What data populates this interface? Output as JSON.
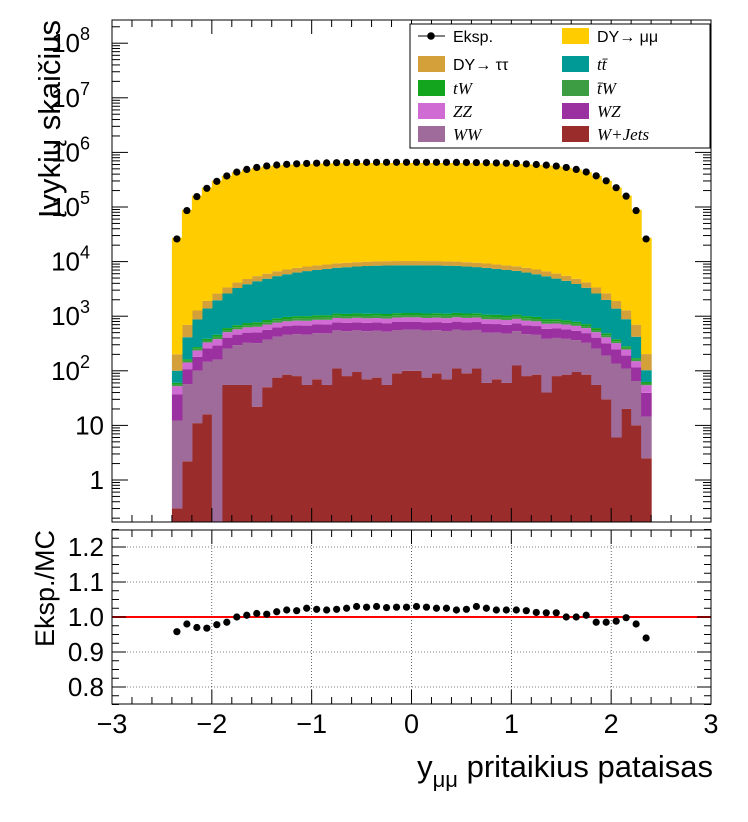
{
  "chart_data": [
    {
      "panel": "main",
      "type": "stacked-histogram-with-points",
      "ylabel": "Įvykių skaičius",
      "yscale": "log",
      "ylim": [
        0.2,
        150000000
      ],
      "xlim": [
        -3,
        3
      ],
      "bin_edges_range": [
        -2.4,
        2.4
      ],
      "n_bins": 48,
      "ytick_labels": [
        "1",
        "10",
        "10^2",
        "10^3",
        "10^4",
        "10^5",
        "10^6",
        "10^7",
        "10^8"
      ],
      "xtick_labels": [
        "−3",
        "−2",
        "−1",
        "0",
        "1",
        "2",
        "3"
      ],
      "legend": [
        {
          "label": "Eksp.",
          "kind": "points",
          "italic": false
        },
        {
          "label": "DY→ μμ",
          "kind": "fill",
          "color": "#ffcc00",
          "italic": false
        },
        {
          "label": "DY→ ττ",
          "kind": "fill",
          "color": "#d4a03a",
          "italic": false
        },
        {
          "label": "tt̄",
          "kind": "fill",
          "color": "#009a96",
          "italic": true
        },
        {
          "label": "tW",
          "kind": "fill",
          "color": "#13a51d",
          "italic": true
        },
        {
          "label": "t̄W",
          "kind": "fill",
          "color": "#3c9d42",
          "italic": true
        },
        {
          "label": "ZZ",
          "kind": "fill",
          "color": "#d16bd4",
          "italic": true
        },
        {
          "label": "WZ",
          "kind": "fill",
          "color": "#9b31a0",
          "italic": true
        },
        {
          "label": "WW",
          "kind": "fill",
          "color": "#9e6b9a",
          "italic": true
        },
        {
          "label": "W+Jets",
          "kind": "fill",
          "color": "#9a2c2c",
          "italic": true
        }
      ],
      "legend_position": "top-right",
      "series": [
        {
          "name": "W+Jets",
          "color": "#9a2c2c",
          "values": [
            0.3,
            2.2,
            11,
            16,
            0.1,
            55,
            55,
            55,
            22,
            50,
            75,
            85,
            80,
            55,
            70,
            55,
            110,
            80,
            95,
            70,
            75,
            55,
            90,
            100,
            100,
            75,
            90,
            70,
            110,
            90,
            110,
            60,
            70,
            60,
            125,
            80,
            85,
            40,
            80,
            85,
            95,
            85,
            55,
            30,
            6,
            20,
            10,
            2.5
          ]
        },
        {
          "name": "WW",
          "color": "#9e6b9a",
          "values": [
            12,
            55,
            90,
            130,
            160,
            200,
            240,
            270,
            300,
            320,
            345,
            370,
            390,
            405,
            420,
            430,
            440,
            450,
            455,
            460,
            465,
            465,
            468,
            468,
            468,
            468,
            465,
            465,
            460,
            455,
            450,
            440,
            430,
            420,
            405,
            390,
            370,
            345,
            320,
            300,
            270,
            240,
            200,
            160,
            130,
            90,
            55,
            12
          ]
        },
        {
          "name": "WZ",
          "color": "#9b31a0",
          "values": [
            25,
            50,
            80,
            110,
            130,
            150,
            165,
            175,
            185,
            195,
            200,
            205,
            210,
            212,
            215,
            218,
            220,
            222,
            224,
            225,
            225,
            225,
            225,
            225,
            225,
            225,
            225,
            225,
            225,
            224,
            222,
            220,
            218,
            215,
            212,
            210,
            205,
            200,
            195,
            185,
            175,
            165,
            150,
            130,
            110,
            80,
            50,
            25
          ]
        },
        {
          "name": "ZZ",
          "color": "#d16bd4",
          "values": [
            15,
            35,
            55,
            75,
            90,
            105,
            115,
            125,
            132,
            138,
            142,
            146,
            150,
            152,
            154,
            156,
            158,
            159,
            160,
            160,
            160,
            160,
            160,
            160,
            160,
            160,
            160,
            160,
            160,
            160,
            159,
            158,
            156,
            154,
            152,
            150,
            146,
            142,
            138,
            132,
            125,
            115,
            105,
            90,
            75,
            55,
            35,
            15
          ]
        },
        {
          "name": "t̄W",
          "color": "#3c9d42",
          "values": [
            4,
            10,
            18,
            28,
            38,
            48,
            55,
            62,
            68,
            74,
            78,
            82,
            86,
            88,
            90,
            92,
            94,
            95,
            96,
            96,
            96,
            96,
            96,
            96,
            96,
            96,
            96,
            96,
            96,
            96,
            95,
            94,
            92,
            90,
            88,
            86,
            82,
            78,
            74,
            68,
            62,
            55,
            48,
            38,
            28,
            18,
            10,
            4
          ]
        },
        {
          "name": "tW",
          "color": "#13a51d",
          "values": [
            4,
            10,
            18,
            28,
            38,
            48,
            55,
            62,
            68,
            74,
            78,
            82,
            86,
            88,
            90,
            92,
            94,
            95,
            96,
            96,
            96,
            96,
            96,
            96,
            96,
            96,
            96,
            96,
            96,
            96,
            95,
            94,
            92,
            90,
            88,
            86,
            82,
            78,
            74,
            68,
            62,
            55,
            48,
            38,
            28,
            18,
            10,
            4
          ]
        },
        {
          "name": "tt̄",
          "color": "#009a96",
          "values": [
            40,
            250,
            600,
            1000,
            1500,
            2000,
            2600,
            3100,
            3600,
            4000,
            4500,
            4900,
            5300,
            5700,
            6000,
            6300,
            6600,
            6800,
            7000,
            7200,
            7300,
            7400,
            7400,
            7400,
            7400,
            7400,
            7400,
            7300,
            7200,
            7000,
            6800,
            6600,
            6300,
            6000,
            5700,
            5300,
            4900,
            4500,
            4000,
            3600,
            3100,
            2600,
            2000,
            1500,
            1000,
            600,
            250,
            40
          ]
        },
        {
          "name": "DY→ ττ",
          "color": "#d4a03a",
          "values": [
            100,
            280,
            400,
            520,
            640,
            750,
            850,
            950,
            1050,
            1150,
            1230,
            1300,
            1370,
            1430,
            1480,
            1520,
            1560,
            1600,
            1630,
            1650,
            1670,
            1680,
            1690,
            1690,
            1690,
            1690,
            1680,
            1670,
            1650,
            1630,
            1600,
            1560,
            1520,
            1480,
            1430,
            1370,
            1300,
            1230,
            1150,
            1050,
            950,
            850,
            750,
            640,
            520,
            400,
            280,
            100
          ]
        },
        {
          "name": "DY→ μμ",
          "color": "#ffcc00",
          "values": [
            27000,
            88000,
            160000,
            225000,
            300000,
            370000,
            430000,
            480000,
            520000,
            550000,
            570000,
            585000,
            595000,
            605000,
            612000,
            618000,
            622000,
            625000,
            627000,
            628000,
            629000,
            629000,
            630000,
            630000,
            630000,
            630000,
            629000,
            629000,
            628000,
            627000,
            625000,
            622000,
            618000,
            612000,
            605000,
            595000,
            585000,
            570000,
            550000,
            520000,
            480000,
            430000,
            370000,
            300000,
            225000,
            160000,
            88000,
            27000
          ]
        },
        {
          "name": "Eksp.",
          "kind": "points",
          "values": [
            26000,
            86000,
            155000,
            220000,
            295000,
            370000,
            435000,
            488000,
            530000,
            565000,
            588000,
            605000,
            618000,
            628000,
            635000,
            642000,
            648000,
            652000,
            655000,
            657000,
            658000,
            658000,
            659000,
            659000,
            659000,
            659000,
            658000,
            658000,
            656000,
            654000,
            651000,
            647000,
            641000,
            634000,
            626000,
            615000,
            600000,
            585000,
            562000,
            530000,
            488000,
            438000,
            372000,
            302000,
            226000,
            158000,
            86000,
            26000
          ]
        }
      ]
    },
    {
      "panel": "ratio",
      "type": "scatter",
      "ylabel": "Eksp./MC",
      "xlabel": "y_μμ pritaikius pataisas",
      "xlabel_main": "y",
      "xlabel_sub": "μμ",
      "xlabel_rest": " pritaikius pataisas",
      "ylim": [
        0.75,
        1.25
      ],
      "xlim": [
        -3,
        3
      ],
      "ytick_labels": [
        "0.8",
        "0.9",
        "1.0",
        "1.1",
        "1.2"
      ],
      "xtick_labels": [
        "−3",
        "−2",
        "−1",
        "0",
        "1",
        "2",
        "3"
      ],
      "reference_line": {
        "y": 1.0,
        "color": "#ff0000"
      },
      "grid": true,
      "x": [
        -2.35,
        -2.25,
        -2.15,
        -2.05,
        -1.95,
        -1.85,
        -1.75,
        -1.65,
        -1.55,
        -1.45,
        -1.35,
        -1.25,
        -1.15,
        -1.05,
        -0.95,
        -0.85,
        -0.75,
        -0.65,
        -0.55,
        -0.45,
        -0.35,
        -0.25,
        -0.15,
        -0.05,
        0.05,
        0.15,
        0.25,
        0.35,
        0.45,
        0.55,
        0.65,
        0.75,
        0.85,
        0.95,
        1.05,
        1.15,
        1.25,
        1.35,
        1.45,
        1.55,
        1.65,
        1.75,
        1.85,
        1.95,
        2.05,
        2.15,
        2.25,
        2.35
      ],
      "y": [
        0.958,
        0.98,
        0.97,
        0.968,
        0.978,
        0.985,
        1.0,
        1.005,
        1.01,
        1.008,
        1.015,
        1.02,
        1.018,
        1.025,
        1.022,
        1.02,
        1.022,
        1.025,
        1.03,
        1.028,
        1.03,
        1.027,
        1.028,
        1.028,
        1.03,
        1.028,
        1.025,
        1.025,
        1.02,
        1.022,
        1.03,
        1.025,
        1.02,
        1.02,
        1.02,
        1.018,
        1.013,
        1.012,
        1.012,
        1.0,
        1.0,
        1.005,
        0.985,
        0.985,
        0.988,
        0.998,
        0.98,
        0.94
      ]
    }
  ]
}
